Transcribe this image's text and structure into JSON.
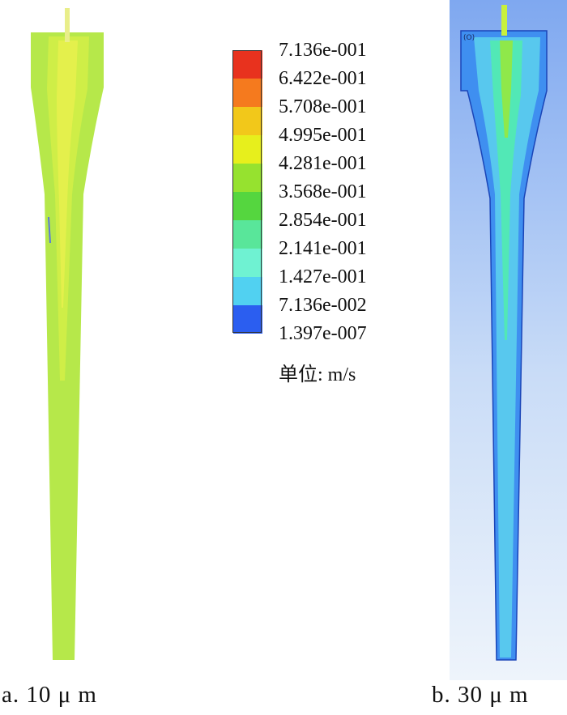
{
  "legend": {
    "ticks": [
      {
        "label": "7.136e-001",
        "color": "#e8321e"
      },
      {
        "label": "6.422e-001",
        "color": "#f57a1e"
      },
      {
        "label": "5.708e-001",
        "color": "#f2c81a"
      },
      {
        "label": "4.995e-001",
        "color": "#e7ef1c"
      },
      {
        "label": "4.281e-001",
        "color": "#96e22f"
      },
      {
        "label": "3.568e-001",
        "color": "#55d63f"
      },
      {
        "label": "2.854e-001",
        "color": "#59e69a"
      },
      {
        "label": "2.141e-001",
        "color": "#6ff2d2"
      },
      {
        "label": "1.427e-001",
        "color": "#51d1f1"
      },
      {
        "label": "7.136e-002",
        "color": "#2b5ef0"
      },
      {
        "label": "1.397e-007",
        "color": null
      }
    ],
    "unit_label": "单位: m/s"
  },
  "panels": [
    {
      "caption": "a. 10 μ m",
      "fill_color": "#b6e84a",
      "core_color": "#e4f04c",
      "rod_color": "#e9ee8a"
    },
    {
      "caption": "b. 30 μ m",
      "fill_color": "#4ea6f0",
      "core_color": "#52e8b6",
      "rod_color": "#c9f03c",
      "background_color": "#8fb7f2"
    }
  ]
}
